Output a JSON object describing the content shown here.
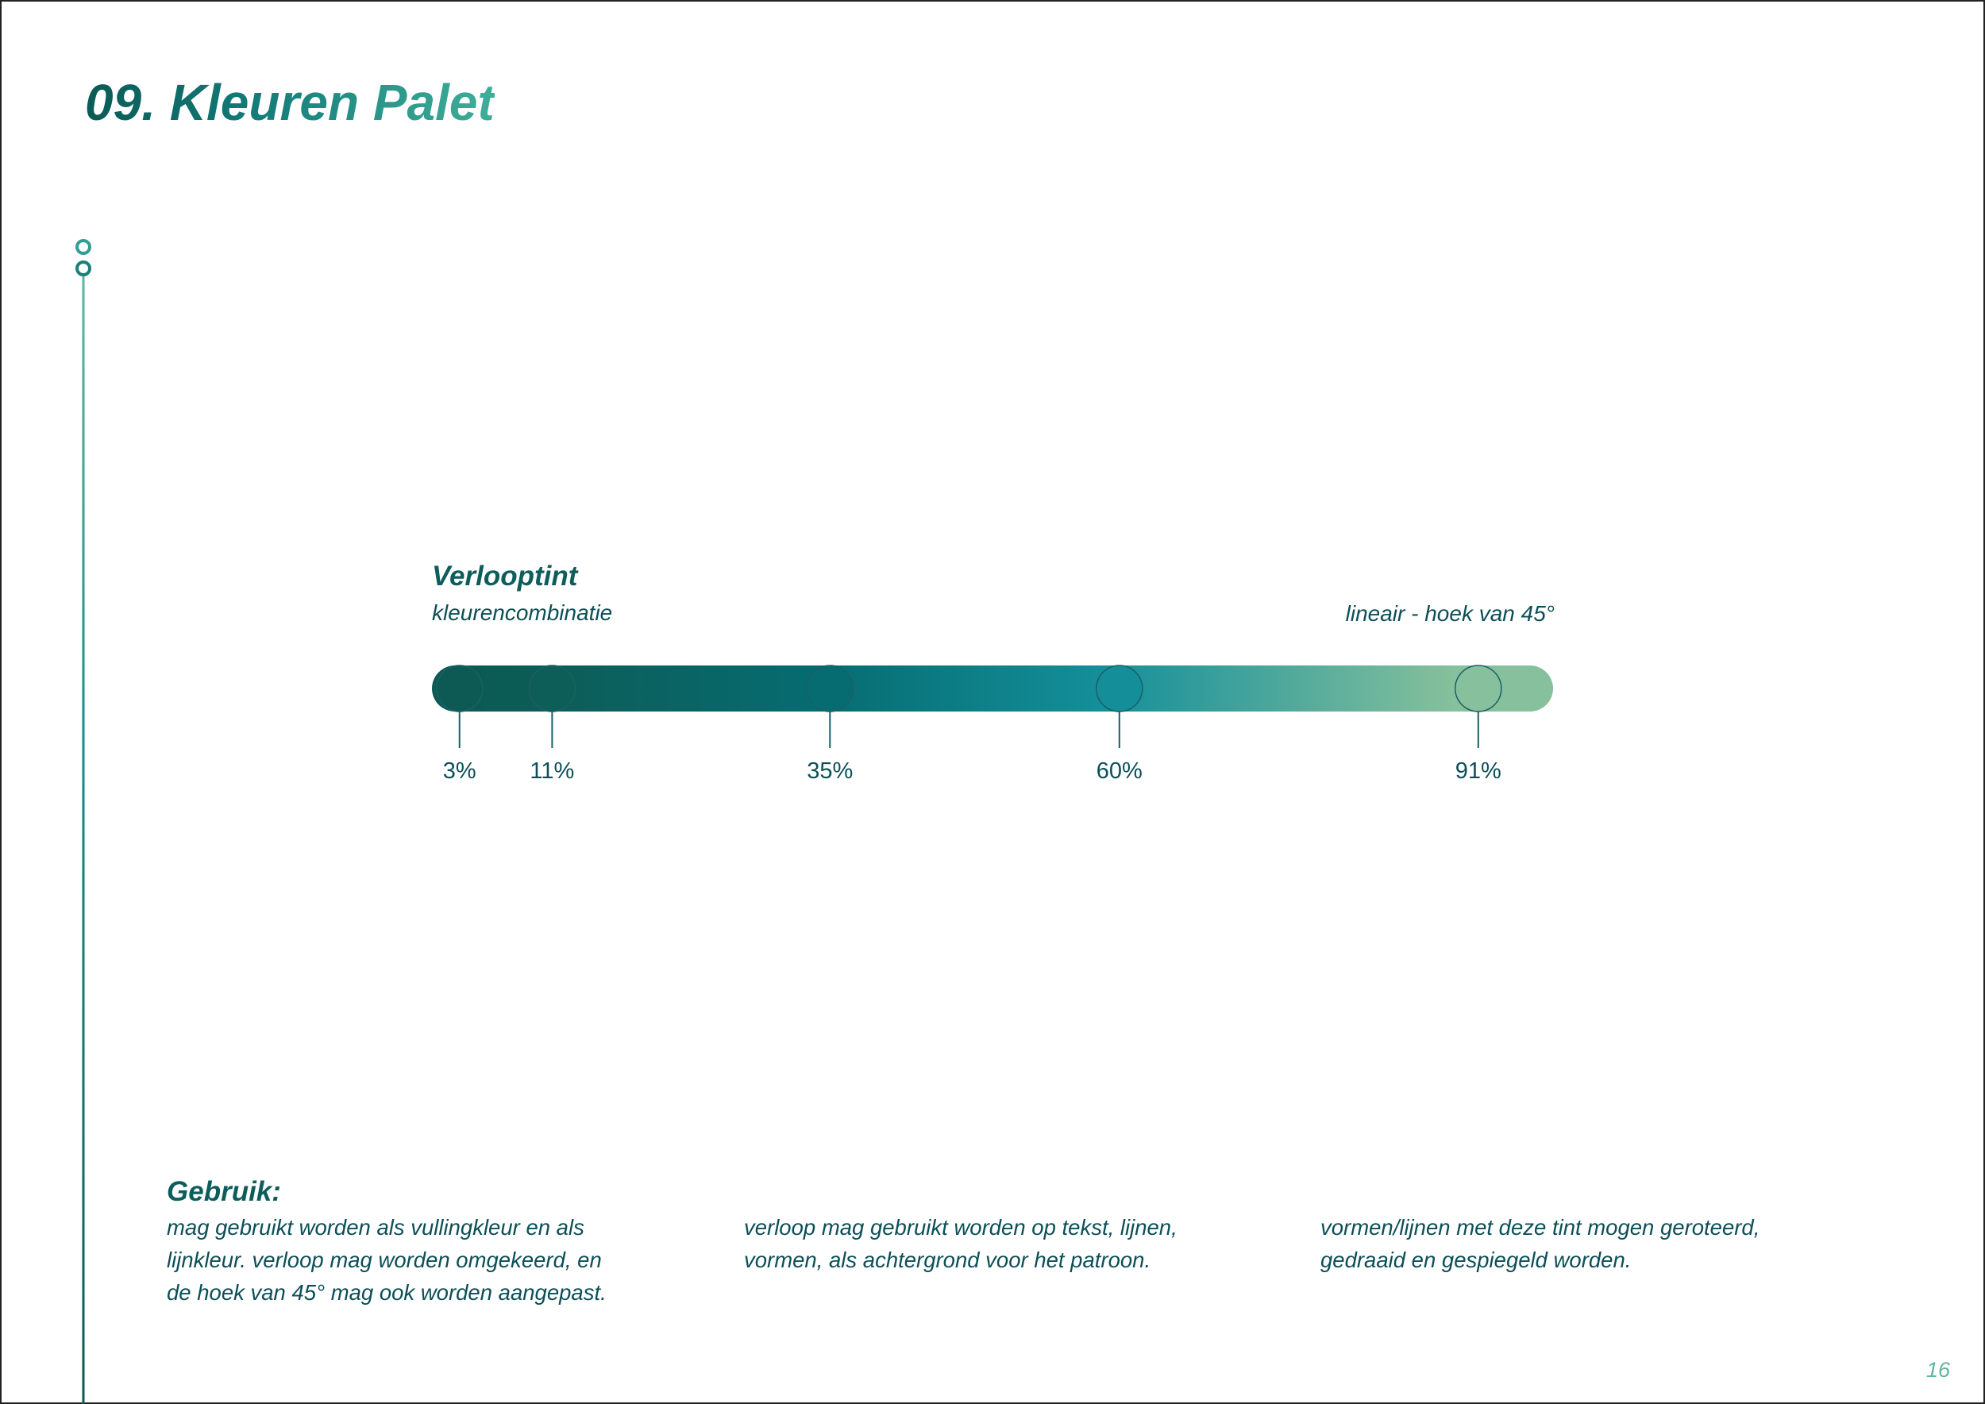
{
  "header": {
    "title": "09. Kleuren Palet"
  },
  "gradient": {
    "title": "Verlooptint",
    "subtitle": "kleurencombinatie",
    "note": "lineair - hoek van 45°",
    "stops": [
      {
        "value": 3,
        "label": "3%",
        "color": "#0c5a53"
      },
      {
        "value": 11,
        "label": "11%",
        "color": "#0d5d58"
      },
      {
        "value": 35,
        "label": "35%",
        "color": "#066c71"
      },
      {
        "value": 60,
        "label": "60%",
        "color": "#148f9a"
      },
      {
        "value": 91,
        "label": "91%",
        "color": "#86c09c"
      }
    ]
  },
  "usage": {
    "title": "Gebruik:",
    "columns": [
      [
        "mag gebruikt worden als vullingkleur en als",
        "lijnkleur. verloop mag worden omgekeerd, en",
        "de hoek van 45° mag ook worden aangepast."
      ],
      [
        "verloop mag gebruikt worden op tekst, lijnen,",
        "vormen, als achtergrond voor het patroon."
      ],
      [
        "vormen/lijnen met deze tint mogen geroteerd,",
        "gedraaid en gespiegeld worden."
      ]
    ]
  },
  "footer": {
    "page_number": "16"
  }
}
